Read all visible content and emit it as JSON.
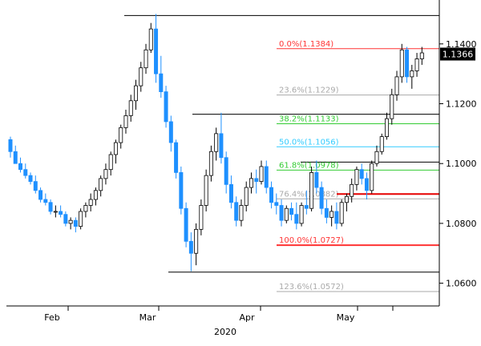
{
  "chart_data": {
    "type": "candlestick",
    "instrument_price_axis": {
      "ylim": [
        1.054,
        1.152
      ],
      "ticks": [
        "1.1400",
        "1.1200",
        "1.1000",
        "1.0800",
        "1.0600"
      ],
      "tick_values": [
        1.14,
        1.12,
        1.1,
        1.08,
        1.06
      ]
    },
    "last_price": {
      "label": "1.1366",
      "value": 1.1366
    },
    "x_axis": {
      "month_labels": [
        "Feb",
        "Mar",
        "Apr",
        "May"
      ],
      "year_label": "2020"
    },
    "colors": {
      "bull": "#ffffff",
      "bull_outline": "#000000",
      "bear": "#1e90ff",
      "fib_0": "#ff3333",
      "fib_236": "#aaaaaa",
      "fib_382": "#33cc33",
      "fib_50": "#33ccff",
      "fib_618": "#33cc33",
      "fib_764": "#aaaaaa",
      "fib_100": "#ff3333",
      "fib_1236": "#aaaaaa",
      "swing": "#000000",
      "red_zone": "#e60000"
    },
    "fib_levels": [
      {
        "label": "0.0%(1.1384)",
        "value": 1.1384,
        "color_key": "fib_0"
      },
      {
        "label": "23.6%(1.1229)",
        "value": 1.1229,
        "color_key": "fib_236"
      },
      {
        "label": "38.2%(1.1133)",
        "value": 1.1133,
        "color_key": "fib_382"
      },
      {
        "label": "50.0%(1.1056)",
        "value": 1.1056,
        "color_key": "fib_50"
      },
      {
        "label": "61.8%(1.0978)",
        "value": 1.0978,
        "color_key": "fib_618"
      },
      {
        "label": "76.4%(1.0882)",
        "value": 1.0882,
        "color_key": "fib_764"
      },
      {
        "label": "100.0%(1.0727)",
        "value": 1.0727,
        "color_key": "fib_100"
      },
      {
        "label": "123.6%(1.0572)",
        "value": 1.0572,
        "color_key": "fib_1236"
      }
    ],
    "swing_lines": [
      {
        "value": 1.1495
      },
      {
        "value": 1.1165
      },
      {
        "value": 1.1005
      },
      {
        "value": 1.0637
      }
    ],
    "red_zone": {
      "value": 1.0898
    },
    "candles": [
      [
        1.108,
        1.109,
        1.102,
        1.104
      ],
      [
        1.104,
        1.106,
        1.1,
        1.1
      ],
      [
        1.1,
        1.102,
        1.097,
        1.098
      ],
      [
        1.098,
        1.1,
        1.095,
        1.096
      ],
      [
        1.096,
        1.097,
        1.093,
        1.094
      ],
      [
        1.094,
        1.096,
        1.09,
        1.091
      ],
      [
        1.091,
        1.092,
        1.087,
        1.088
      ],
      [
        1.088,
        1.09,
        1.086,
        1.087
      ],
      [
        1.087,
        1.088,
        1.083,
        1.084
      ],
      [
        1.084,
        1.086,
        1.082,
        1.084
      ],
      [
        1.084,
        1.086,
        1.082,
        1.083
      ],
      [
        1.083,
        1.084,
        1.079,
        1.08
      ],
      [
        1.08,
        1.082,
        1.078,
        1.081
      ],
      [
        1.081,
        1.082,
        1.077,
        1.079
      ],
      [
        1.079,
        1.085,
        1.078,
        1.084
      ],
      [
        1.084,
        1.087,
        1.082,
        1.086
      ],
      [
        1.086,
        1.09,
        1.084,
        1.088
      ],
      [
        1.088,
        1.092,
        1.086,
        1.091
      ],
      [
        1.091,
        1.096,
        1.089,
        1.095
      ],
      [
        1.095,
        1.1,
        1.093,
        1.098
      ],
      [
        1.098,
        1.104,
        1.096,
        1.103
      ],
      [
        1.103,
        1.108,
        1.1,
        1.107
      ],
      [
        1.107,
        1.113,
        1.105,
        1.112
      ],
      [
        1.112,
        1.118,
        1.11,
        1.116
      ],
      [
        1.116,
        1.123,
        1.114,
        1.121
      ],
      [
        1.121,
        1.128,
        1.118,
        1.126
      ],
      [
        1.126,
        1.134,
        1.124,
        1.132
      ],
      [
        1.132,
        1.14,
        1.13,
        1.138
      ],
      [
        1.138,
        1.147,
        1.137,
        1.145
      ],
      [
        1.145,
        1.15,
        1.127,
        1.13
      ],
      [
        1.13,
        1.136,
        1.122,
        1.124
      ],
      [
        1.124,
        1.126,
        1.112,
        1.114
      ],
      [
        1.114,
        1.116,
        1.104,
        1.107
      ],
      [
        1.107,
        1.108,
        1.095,
        1.097
      ],
      [
        1.097,
        1.099,
        1.083,
        1.085
      ],
      [
        1.085,
        1.087,
        1.072,
        1.074
      ],
      [
        1.074,
        1.077,
        1.064,
        1.07
      ],
      [
        1.07,
        1.08,
        1.066,
        1.078
      ],
      [
        1.078,
        1.088,
        1.076,
        1.086
      ],
      [
        1.086,
        1.098,
        1.084,
        1.096
      ],
      [
        1.096,
        1.106,
        1.094,
        1.104
      ],
      [
        1.104,
        1.112,
        1.101,
        1.11
      ],
      [
        1.11,
        1.117,
        1.1,
        1.102
      ],
      [
        1.102,
        1.104,
        1.09,
        1.093
      ],
      [
        1.093,
        1.096,
        1.085,
        1.087
      ],
      [
        1.087,
        1.089,
        1.079,
        1.081
      ],
      [
        1.081,
        1.088,
        1.079,
        1.086
      ],
      [
        1.086,
        1.094,
        1.084,
        1.092
      ],
      [
        1.092,
        1.097,
        1.09,
        1.095
      ],
      [
        1.095,
        1.098,
        1.09,
        1.094
      ],
      [
        1.094,
        1.101,
        1.093,
        1.099
      ],
      [
        1.099,
        1.101,
        1.09,
        1.092
      ],
      [
        1.092,
        1.094,
        1.085,
        1.087
      ],
      [
        1.087,
        1.09,
        1.083,
        1.086
      ],
      [
        1.086,
        1.088,
        1.079,
        1.081
      ],
      [
        1.081,
        1.086,
        1.08,
        1.085
      ],
      [
        1.085,
        1.087,
        1.081,
        1.083
      ],
      [
        1.083,
        1.087,
        1.078,
        1.08
      ],
      [
        1.08,
        1.087,
        1.079,
        1.086
      ],
      [
        1.086,
        1.091,
        1.083,
        1.085
      ],
      [
        1.085,
        1.099,
        1.084,
        1.097
      ],
      [
        1.097,
        1.101,
        1.09,
        1.092
      ],
      [
        1.092,
        1.094,
        1.083,
        1.085
      ],
      [
        1.085,
        1.088,
        1.08,
        1.082
      ],
      [
        1.082,
        1.086,
        1.079,
        1.084
      ],
      [
        1.084,
        1.087,
        1.078,
        1.08
      ],
      [
        1.08,
        1.088,
        1.079,
        1.087
      ],
      [
        1.087,
        1.09,
        1.084,
        1.089
      ],
      [
        1.089,
        1.095,
        1.087,
        1.093
      ],
      [
        1.093,
        1.099,
        1.091,
        1.098
      ],
      [
        1.098,
        1.1,
        1.093,
        1.095
      ],
      [
        1.095,
        1.097,
        1.088,
        1.091
      ],
      [
        1.091,
        1.101,
        1.09,
        1.1
      ],
      [
        1.1,
        1.106,
        1.099,
        1.104
      ],
      [
        1.104,
        1.11,
        1.103,
        1.109
      ],
      [
        1.109,
        1.117,
        1.108,
        1.115
      ],
      [
        1.115,
        1.125,
        1.113,
        1.123
      ],
      [
        1.123,
        1.131,
        1.121,
        1.129
      ],
      [
        1.129,
        1.14,
        1.127,
        1.138
      ],
      [
        1.138,
        1.139,
        1.127,
        1.129
      ],
      [
        1.129,
        1.133,
        1.125,
        1.131
      ],
      [
        1.131,
        1.137,
        1.129,
        1.135
      ],
      [
        1.135,
        1.139,
        1.133,
        1.137
      ]
    ]
  }
}
